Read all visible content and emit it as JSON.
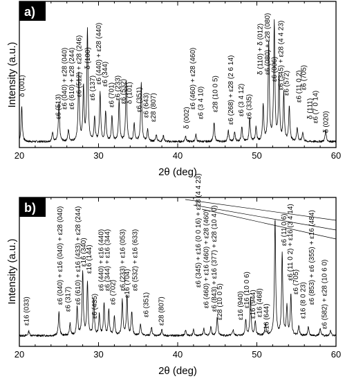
{
  "chart_data": [
    {
      "type": "line",
      "panel_label": "a)",
      "xlabel": "2θ (deg)",
      "ylabel": "Intensity (a.u.)",
      "xlim": [
        20,
        60
      ],
      "xticks": [
        20,
        30,
        40,
        50,
        60
      ],
      "y_ticks_shown": false,
      "grid": false,
      "peaks": [
        {
          "x": 20.3,
          "h": 0.3
        },
        {
          "x": 24.2,
          "h": 0.08
        },
        {
          "x": 25.0,
          "h": 0.32
        },
        {
          "x": 26.2,
          "h": 0.1
        },
        {
          "x": 27.5,
          "h": 0.58
        },
        {
          "x": 28.1,
          "h": 0.45
        },
        {
          "x": 28.6,
          "h": 0.95
        },
        {
          "x": 29.5,
          "h": 0.2
        },
        {
          "x": 30.2,
          "h": 0.42
        },
        {
          "x": 30.9,
          "h": 0.25
        },
        {
          "x": 31.7,
          "h": 0.22
        },
        {
          "x": 32.6,
          "h": 0.35
        },
        {
          "x": 33.5,
          "h": 0.52
        },
        {
          "x": 34.5,
          "h": 0.15
        },
        {
          "x": 35.4,
          "h": 0.5
        },
        {
          "x": 36.2,
          "h": 0.1
        },
        {
          "x": 37.3,
          "h": 0.06
        },
        {
          "x": 38.2,
          "h": 0.05
        },
        {
          "x": 41.0,
          "h": 0.05
        },
        {
          "x": 42.3,
          "h": 0.06
        },
        {
          "x": 44.6,
          "h": 0.16
        },
        {
          "x": 46.4,
          "h": 0.09
        },
        {
          "x": 47.2,
          "h": 0.08
        },
        {
          "x": 48.1,
          "h": 0.13
        },
        {
          "x": 49.1,
          "h": 0.2
        },
        {
          "x": 49.9,
          "h": 0.12
        },
        {
          "x": 50.8,
          "h": 0.3
        },
        {
          "x": 51.5,
          "h": 0.85
        },
        {
          "x": 52.2,
          "h": 1.0
        },
        {
          "x": 52.8,
          "h": 0.55
        },
        {
          "x": 53.4,
          "h": 0.4
        },
        {
          "x": 54.1,
          "h": 0.3
        },
        {
          "x": 55.1,
          "h": 0.12
        },
        {
          "x": 55.8,
          "h": 0.08
        },
        {
          "x": 58.7,
          "h": 0.1
        }
      ],
      "annotations": [
        "δ (001)",
        "ε6 (513)",
        "ε6 (040) + ε28 (040)",
        "ε6 (610) + ε28 (244)",
        "ε6 (512) + ε28 (246)",
        "δ (100)",
        "ε6 (137)",
        "ε6 (440) + ε28 (440)",
        "ε6 (344)",
        "ε6 (701)",
        "ε6 (233)",
        "ε6 (532)",
        "δ (101)",
        "ε6 (351)",
        "ε6 (643)",
        "ε28 (807)",
        "δ (002)",
        "ε6 (460) + ε28 (460)",
        "ε6 (3 4 10)",
        "ε28 (10 0 5)",
        "ε6 (268) + ε28 (2 6 14)",
        "ε6 (3 4 12)",
        "ε6 (335)",
        "δ (110) + δ (012)",
        "ε6 (080) + ε28 (080)",
        "ε6 (006)",
        "ε6 (345) + ε28 (4 4 23)",
        "ε6 (572)",
        "ε6 (11 0 2)",
        "ε6 (705)",
        "δ (111)",
        "ε6 (7 0 14)",
        "δ (020)"
      ]
    },
    {
      "type": "line",
      "panel_label": "b)",
      "xlabel": "2θ (deg)",
      "ylabel": "Intensity (a.u.)",
      "xlim": [
        20,
        60
      ],
      "xticks": [
        20,
        30,
        40,
        50,
        60
      ],
      "y_ticks_shown": false,
      "grid": false,
      "peaks": [
        {
          "x": 21.2,
          "h": 0.04
        },
        {
          "x": 25.0,
          "h": 0.2
        },
        {
          "x": 26.4,
          "h": 0.1
        },
        {
          "x": 27.3,
          "h": 0.25
        },
        {
          "x": 28.0,
          "h": 0.55
        },
        {
          "x": 28.6,
          "h": 0.45
        },
        {
          "x": 29.4,
          "h": 0.3
        },
        {
          "x": 30.1,
          "h": 0.18
        },
        {
          "x": 30.7,
          "h": 0.28
        },
        {
          "x": 31.3,
          "h": 0.22
        },
        {
          "x": 32.0,
          "h": 0.16
        },
        {
          "x": 33.0,
          "h": 0.3
        },
        {
          "x": 33.6,
          "h": 0.34
        },
        {
          "x": 34.2,
          "h": 0.2
        },
        {
          "x": 35.3,
          "h": 0.1
        },
        {
          "x": 36.7,
          "h": 0.07
        },
        {
          "x": 38.0,
          "h": 0.05
        },
        {
          "x": 41.0,
          "h": 0.05
        },
        {
          "x": 42.0,
          "h": 0.05
        },
        {
          "x": 43.3,
          "h": 0.06
        },
        {
          "x": 44.2,
          "h": 0.08
        },
        {
          "x": 45.0,
          "h": 0.16
        },
        {
          "x": 47.0,
          "h": 0.05
        },
        {
          "x": 48.6,
          "h": 0.14
        },
        {
          "x": 49.2,
          "h": 0.32
        },
        {
          "x": 49.8,
          "h": 0.12
        },
        {
          "x": 51.1,
          "h": 0.1
        },
        {
          "x": 52.3,
          "h": 1.0
        },
        {
          "x": 53.2,
          "h": 0.7
        },
        {
          "x": 53.8,
          "h": 0.25
        },
        {
          "x": 54.3,
          "h": 0.35
        },
        {
          "x": 55.3,
          "h": 0.08
        },
        {
          "x": 56.5,
          "h": 0.07
        },
        {
          "x": 58.0,
          "h": 0.06
        },
        {
          "x": 59.3,
          "h": 0.05
        }
      ],
      "annotations": [
        "ε16 (033)",
        "ε6 (040) + ε16 (040) + ε28 (040)",
        "ε6 (317)",
        "ε6 (610) + ε16 (433) + ε28 (244)",
        "ε16 (340)",
        "ε16 (144)",
        "ε6 (435)",
        "ε6 (440) + ε16 (440)",
        "ε6 (344) + ε16 (344)",
        "ε6 (702)",
        "ε6 (233) + ε16 (053)",
        "ε16 (704)",
        "ε6 (532) + ε16 (633)",
        "ε6 (351)",
        "ε28 (807)",
        "ε6 (345) + ε16 (0 0 16) + ε28 (4 4 23)",
        "ε6 (460) + ε16 (460) + ε28 (460)",
        "ε6 (843) + ε16 (377) + ε28 (10 4 0)",
        "ε28 (10 0 5)",
        "ε16 (940)",
        "ε16 (10 0 6)",
        "ε16 (944)",
        "ε16 (468)",
        "ε16 (644)",
        "ε6 (11 0 6)",
        "ε6 (11 0 2) + ε16 (3 4 14)",
        "ε6 (705)",
        "ε16 (8 0 23)",
        "ε6 (853) + ε6 (355) + ε16 (484)",
        "ε6 (582) + ε28 (10 6 0)"
      ]
    }
  ]
}
